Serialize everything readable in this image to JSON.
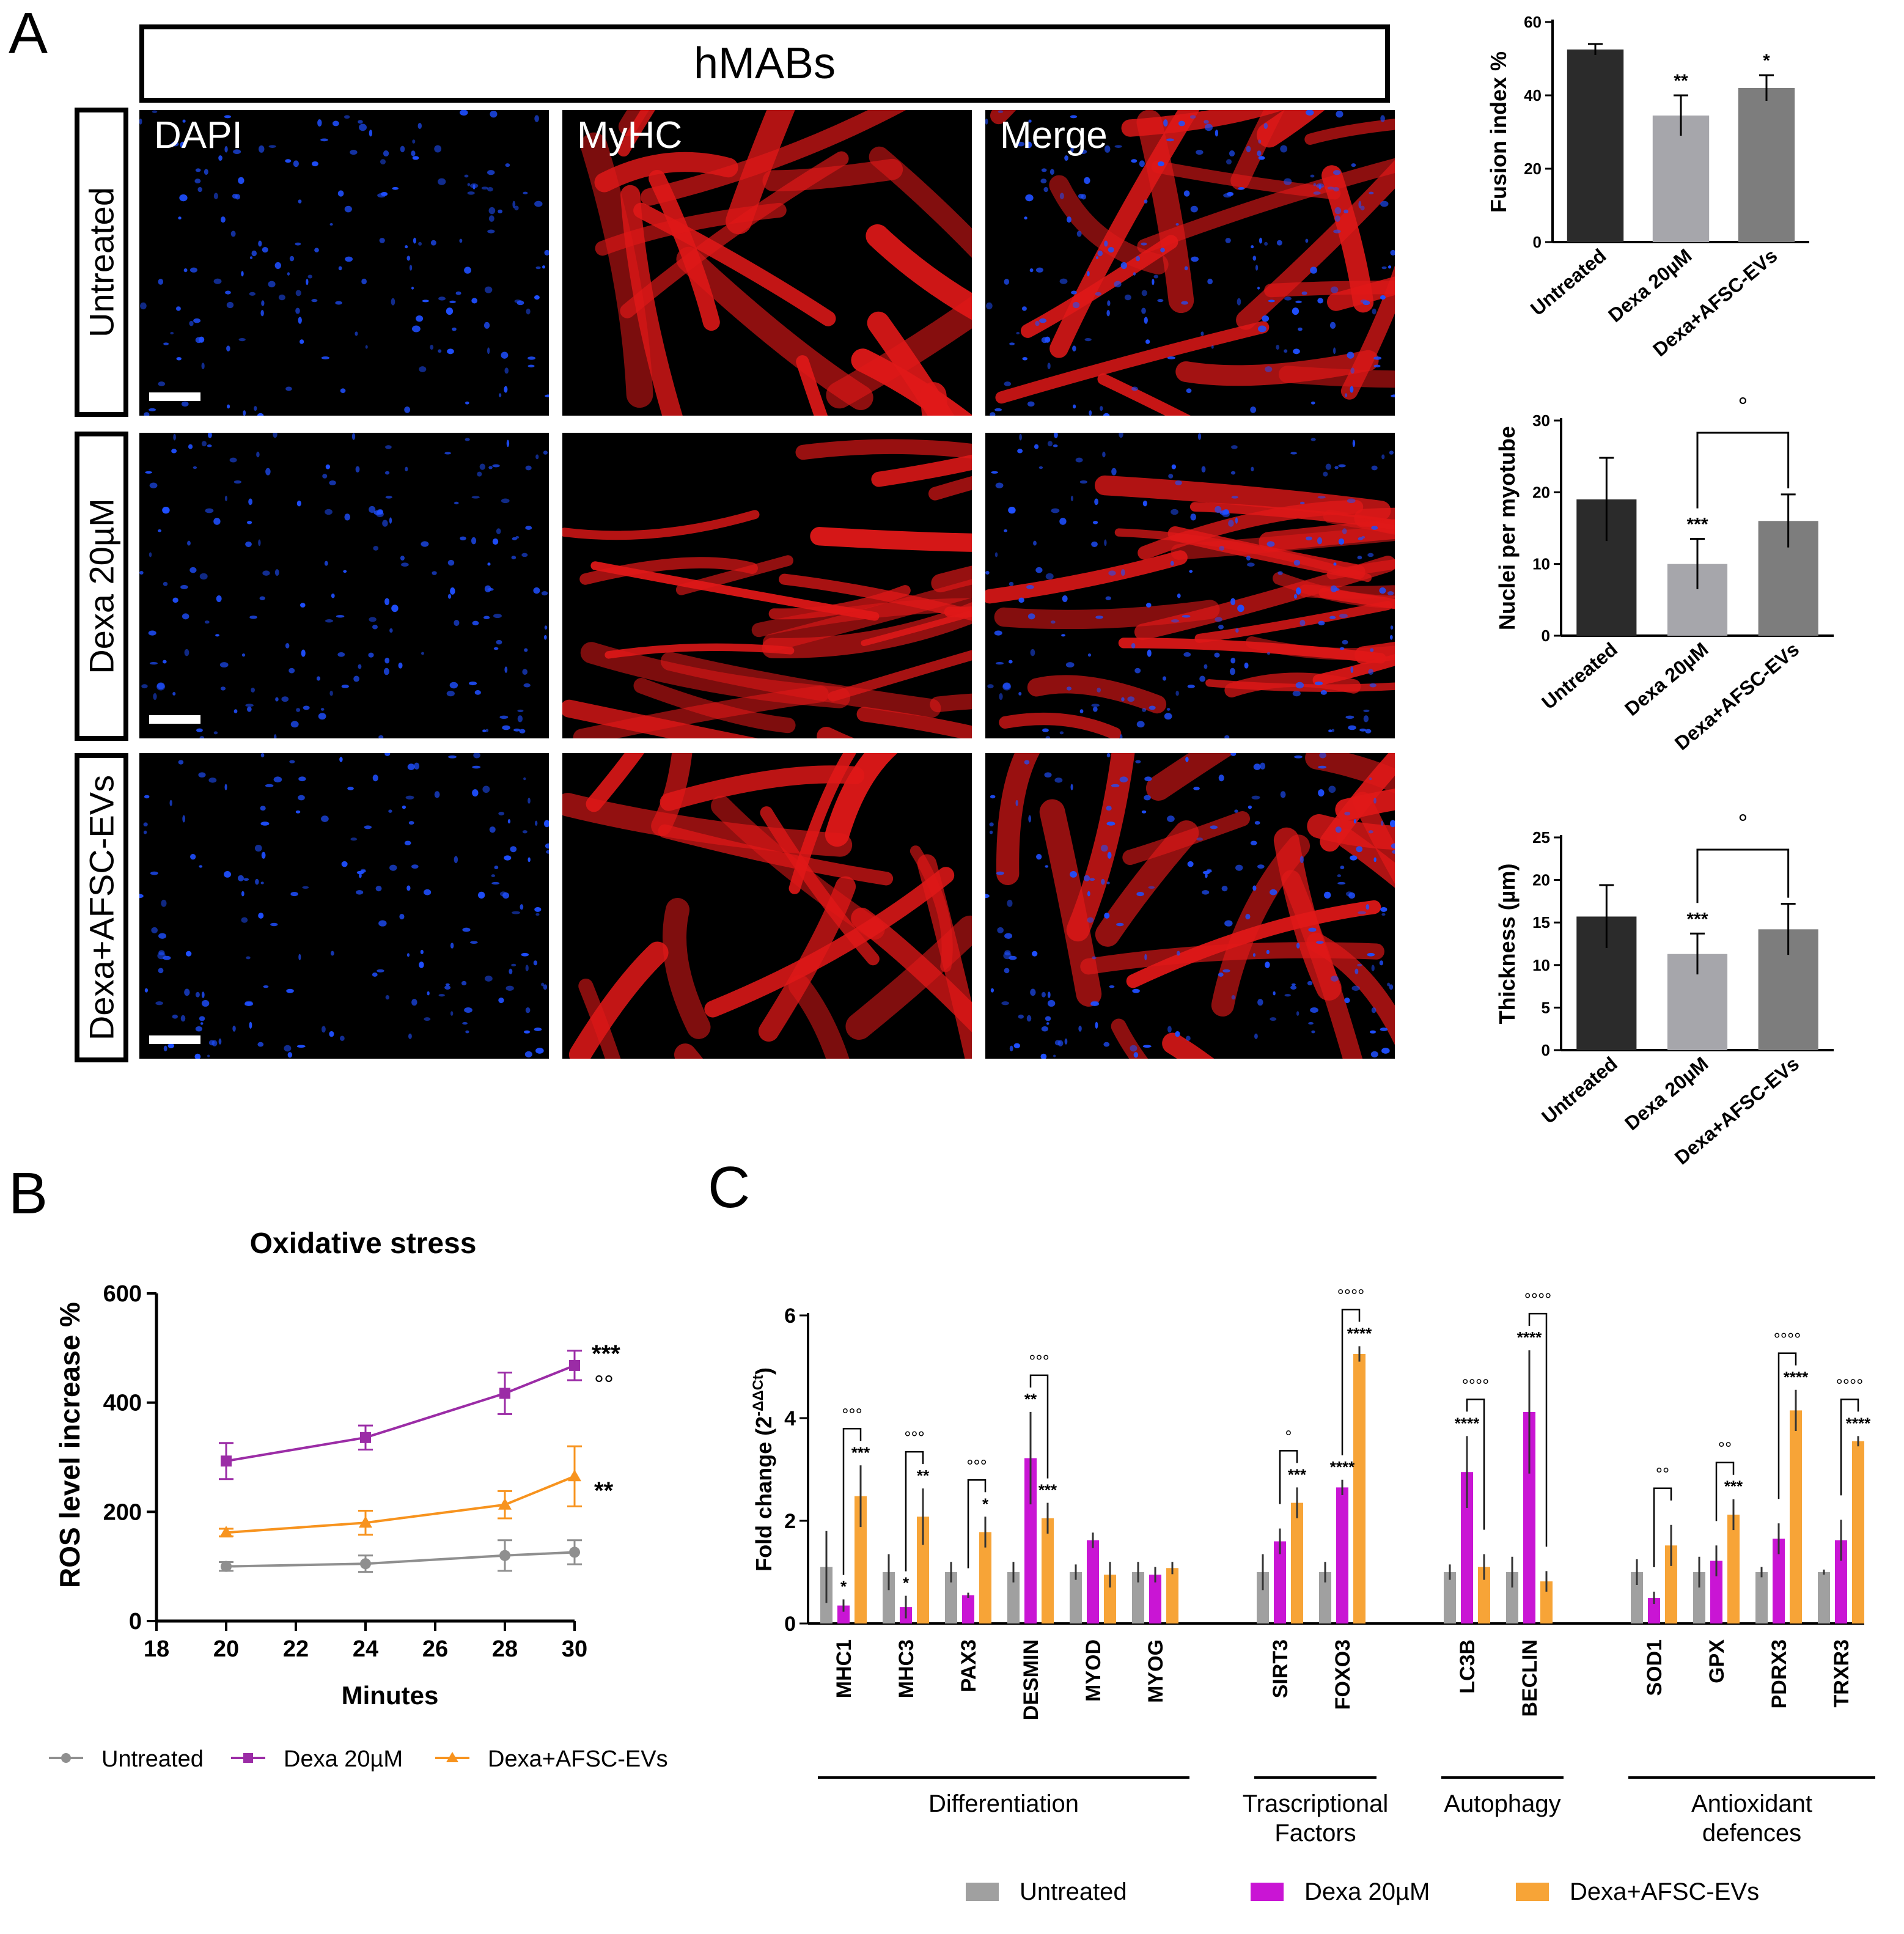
{
  "panels": {
    "a_label": "A",
    "b_label": "B",
    "c_label": "C"
  },
  "microscopy": {
    "header": "hMABs",
    "columns": [
      "DAPI",
      "MyHC",
      "Merge"
    ],
    "rows": [
      "Untreated",
      "Dexa 20µM",
      "Dexa+AFSC-EVs"
    ],
    "colors": {
      "dapi": "#1f4fff",
      "myhc": "#e01818",
      "background": "#000000"
    }
  },
  "chart_data": [
    {
      "id": "fusion",
      "type": "bar",
      "ylabel": "Fusion index %",
      "ylim": [
        0,
        60
      ],
      "yticks": [
        "0",
        "20",
        "40",
        "60"
      ],
      "categories": [
        "Untreated",
        "Dexa 20µM",
        "Dexa+AFSC-EVs"
      ],
      "values": [
        52.5,
        34.5,
        42
      ],
      "errors": [
        1.5,
        5.5,
        3.5
      ],
      "significance": [
        "",
        "**",
        "*"
      ],
      "bracket_label": "",
      "colors": [
        "#2b2b2b",
        "#a6a6ab",
        "#7d7d7d"
      ]
    },
    {
      "id": "nuclei",
      "type": "bar",
      "ylabel": "Nuclei per myotube",
      "ylim": [
        0,
        30
      ],
      "yticks": [
        "0",
        "10",
        "20",
        "30"
      ],
      "categories": [
        "Untreated",
        "Dexa 20µM",
        "Dexa+AFSC-EVs"
      ],
      "values": [
        19,
        10,
        16
      ],
      "errors": [
        5.8,
        3.5,
        3.7
      ],
      "significance": [
        "",
        "***",
        ""
      ],
      "bracket_label": "°",
      "colors": [
        "#2b2b2b",
        "#a6a6ab",
        "#7d7d7d"
      ]
    },
    {
      "id": "thickness",
      "type": "bar",
      "ylabel": "Thickness (µm)",
      "ylim": [
        0,
        25
      ],
      "yticks": [
        "0",
        "5",
        "10",
        "15",
        "20",
        "25"
      ],
      "categories": [
        "Untreated",
        "Dexa 20µM",
        "Dexa+AFSC-EVs"
      ],
      "values": [
        15.7,
        11.3,
        14.2
      ],
      "errors": [
        3.7,
        2.4,
        3.0
      ],
      "significance": [
        "",
        "***",
        ""
      ],
      "bracket_label": "°",
      "colors": [
        "#2b2b2b",
        "#a6a6ab",
        "#7d7d7d"
      ]
    },
    {
      "id": "ros",
      "type": "line",
      "title": "Oxidative stress",
      "xlabel": "Minutes",
      "ylabel": "ROS level increase %",
      "xlim": [
        18,
        30
      ],
      "ylim": [
        0,
        600
      ],
      "xticks": [
        "18",
        "20",
        "22",
        "24",
        "26",
        "28",
        "30"
      ],
      "yticks": [
        "0",
        "200",
        "400",
        "600"
      ],
      "x": [
        20,
        24,
        28,
        30
      ],
      "series": [
        {
          "name": "Untreated",
          "values": [
            100,
            105,
            120,
            126
          ],
          "errors": [
            8,
            15,
            28,
            22
          ],
          "color": "#8f8f8f",
          "marker": "circle"
        },
        {
          "name": "Dexa 20µM",
          "values": [
            293,
            336,
            417,
            468
          ],
          "errors": [
            33,
            22,
            38,
            27
          ],
          "color": "#9b2ca6",
          "marker": "square"
        },
        {
          "name": "Dexa+AFSC-EVs",
          "values": [
            162,
            180,
            213,
            265
          ],
          "errors": [
            7,
            22,
            25,
            55
          ],
          "color": "#f7931e",
          "marker": "triangle"
        }
      ],
      "annotations": [
        "***",
        "°°",
        "**"
      ]
    },
    {
      "id": "genes",
      "type": "bar",
      "ylabel": "Fold change (2",
      "ylabel_superscript": "-ΔΔCt",
      "ylabel_close": ")",
      "ylim": [
        0,
        6
      ],
      "yticks": [
        "0",
        "2",
        "4",
        "6"
      ],
      "categories": [
        "MHC1",
        "MHC3",
        "PAX3",
        "DESMIN",
        "MYOD",
        "MYOG",
        "SIRT3",
        "FOXO3",
        "LC3B",
        "BECLIN",
        "SOD1",
        "GPX",
        "PDRX3",
        "TRXR3"
      ],
      "series": [
        {
          "name": "Untreated",
          "color": "#a0a0a0",
          "values": [
            1.1,
            1.0,
            1.0,
            1.0,
            1.0,
            1.0,
            1.0,
            1.0,
            1.0,
            1.0,
            1.0,
            1.0,
            1.0,
            1.0
          ],
          "errors": [
            0.7,
            0.35,
            0.2,
            0.2,
            0.15,
            0.2,
            0.35,
            0.2,
            0.15,
            0.3,
            0.25,
            0.3,
            0.1,
            0.05
          ]
        },
        {
          "name": "Dexa 20µM",
          "color": "#c915d4",
          "values": [
            0.35,
            0.32,
            0.55,
            3.22,
            1.62,
            0.95,
            1.6,
            2.65,
            2.95,
            4.12,
            0.5,
            1.22,
            1.65,
            1.62
          ],
          "errors": [
            0.12,
            0.22,
            0.05,
            0.9,
            0.15,
            0.15,
            0.25,
            0.15,
            0.7,
            1.2,
            0.12,
            0.3,
            0.3,
            0.4
          ]
        },
        {
          "name": "Dexa+AFSC-EVs",
          "color": "#f7a437",
          "values": [
            2.48,
            2.08,
            1.78,
            2.05,
            0.95,
            1.08,
            2.35,
            5.25,
            1.1,
            0.82,
            1.52,
            2.12,
            4.15,
            3.55
          ]
        },
        {
          "name": "_errors_evs",
          "color": "",
          "values": [
            0.6,
            0.55,
            0.3,
            0.3,
            0.25,
            0.12,
            0.3,
            0.15,
            0.25,
            0.2,
            0.4,
            0.3,
            0.4,
            0.1
          ]
        }
      ],
      "sig_dexa": [
        "*",
        "*",
        "",
        "**",
        "",
        "",
        "",
        "",
        "",
        "",
        "",
        "",
        "",
        ""
      ],
      "sig_evs": [
        "***",
        "**",
        "*",
        "***",
        "",
        "",
        "***",
        "****",
        "",
        "",
        "",
        "***",
        "****",
        "****"
      ],
      "sig_dexa_extra": [
        "",
        "",
        "",
        "",
        "",
        "",
        "",
        "****",
        "****",
        "****",
        "",
        "",
        "",
        ""
      ],
      "bracket_labels": [
        "°°°",
        "°°°",
        "°°°",
        "°°°",
        "",
        "",
        "°",
        "°°°°",
        "°°°°",
        "°°°°",
        "°°",
        "°°",
        "°°°°",
        "°°°°"
      ],
      "bracket_dexa_to_evs": [
        true,
        true,
        true,
        true,
        false,
        false,
        false,
        false,
        true,
        true,
        false,
        false,
        false,
        false
      ],
      "groups": [
        {
          "label_lines": [
            "Differentiation"
          ],
          "first": 0,
          "last": 5
        },
        {
          "label_lines": [
            "Trascriptional",
            "Factors"
          ],
          "first": 6,
          "last": 7
        },
        {
          "label_lines": [
            "Autophagy"
          ],
          "first": 8,
          "last": 9
        },
        {
          "label_lines": [
            "Antioxidant",
            "defences"
          ],
          "first": 10,
          "last": 13
        }
      ]
    }
  ]
}
